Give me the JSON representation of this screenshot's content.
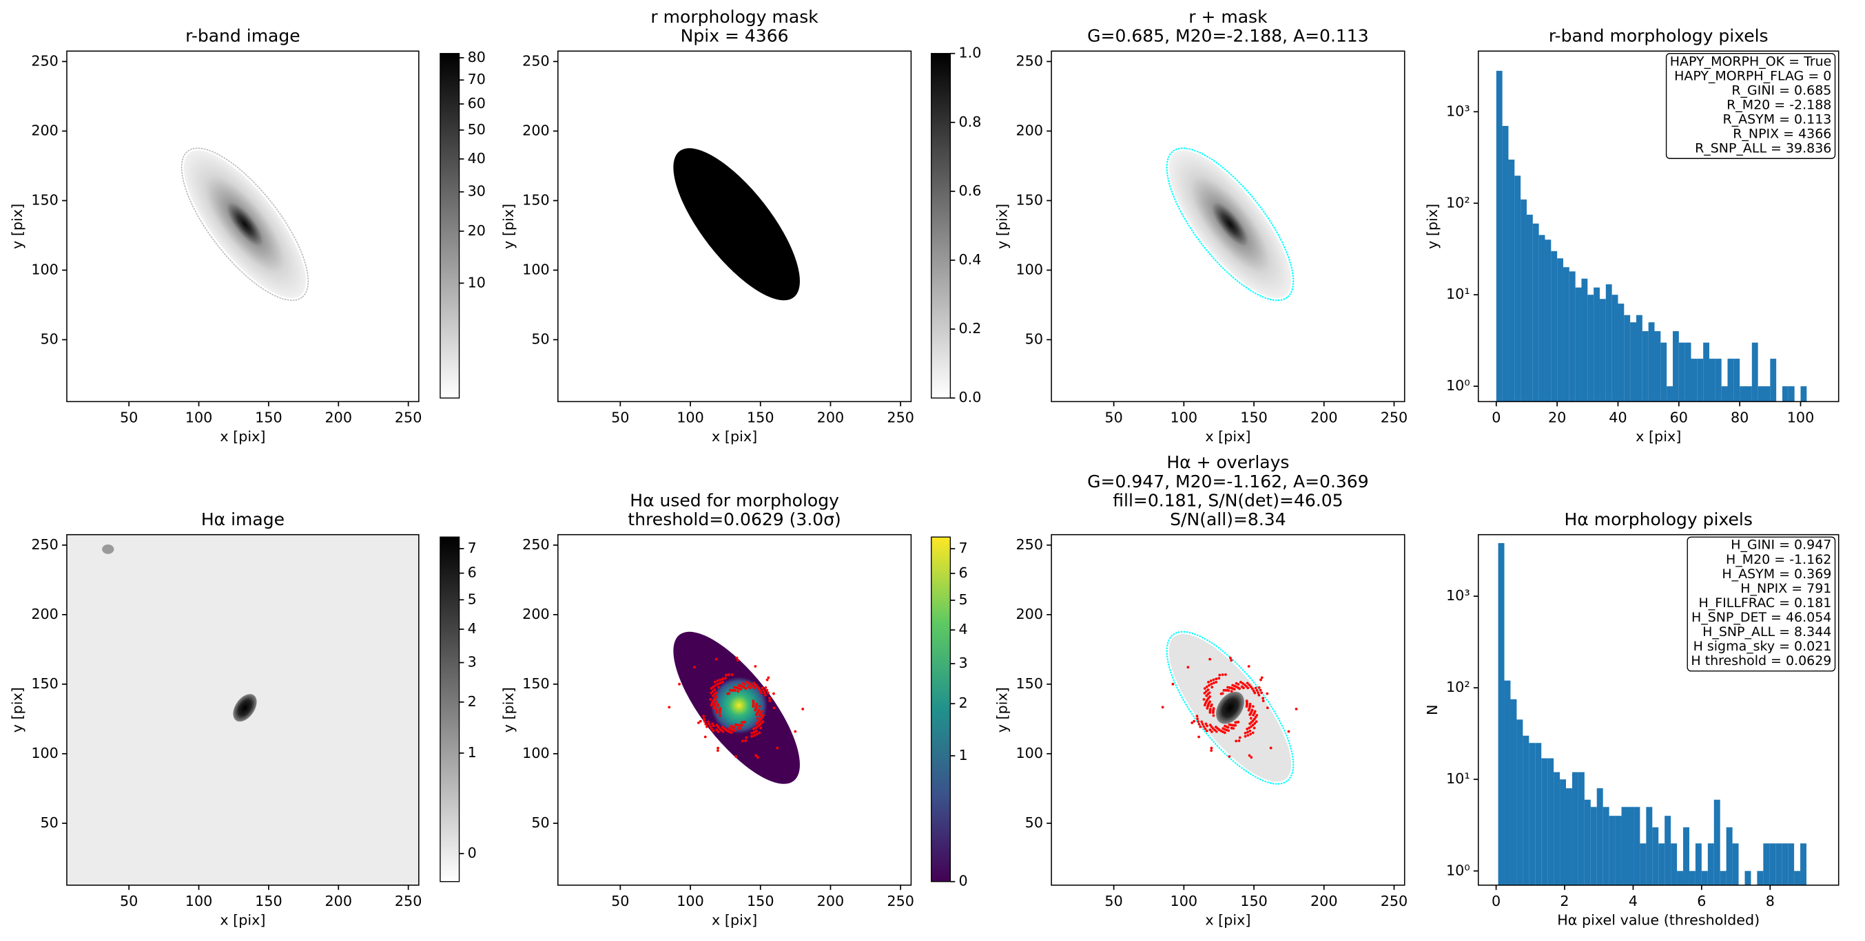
{
  "chart_data": [
    {
      "type": "image",
      "title": [
        "r-band image"
      ],
      "xlabel": "x [pix]",
      "ylabel": "y [pix]",
      "xlim": [
        5.5,
        257.5
      ],
      "ylim": [
        5.5,
        257.5
      ],
      "xticks": [
        50,
        100,
        150,
        200,
        250
      ],
      "yticks": [
        50,
        100,
        150,
        200,
        250
      ],
      "cmap": "gray_r",
      "outline_color": "#bbbbbb",
      "colorbar": {
        "clim": [
          1,
          82
        ],
        "scale": "sqrt",
        "ticks": [
          10,
          20,
          30,
          40,
          50,
          60,
          70,
          80
        ]
      }
    },
    {
      "type": "image",
      "title": [
        "r morphology mask",
        "Npix = 4366"
      ],
      "xlabel": "x [pix]",
      "ylabel": "y [pix]",
      "xlim": [
        5.5,
        257.5
      ],
      "ylim": [
        5.5,
        257.5
      ],
      "xticks": [
        50,
        100,
        150,
        200,
        250
      ],
      "yticks": [
        50,
        100,
        150,
        200,
        250
      ],
      "cmap": "gray_r",
      "colorbar": {
        "clim": [
          0,
          1
        ],
        "scale": "linear",
        "ticks": [
          {
            "value": 0,
            "label": "0.0"
          },
          {
            "value": 0.2,
            "label": "0.2"
          },
          {
            "value": 0.4,
            "label": "0.4"
          },
          {
            "value": 0.6,
            "label": "0.6"
          },
          {
            "value": 0.8,
            "label": "0.8"
          },
          {
            "value": 1,
            "label": "1.0"
          }
        ]
      }
    },
    {
      "type": "image",
      "title": [
        "r + mask",
        "G=0.685, M20=-2.188, A=0.113"
      ],
      "xlabel": "x [pix]",
      "ylabel": "y [pix]",
      "xlim": [
        5.5,
        257.5
      ],
      "ylim": [
        5.5,
        257.5
      ],
      "xticks": [
        50,
        100,
        150,
        200,
        250
      ],
      "yticks": [
        50,
        100,
        150,
        200,
        250
      ],
      "cmap": "gray_r",
      "outline_color": "#00ffff"
    },
    {
      "type": "histogram",
      "title": [
        "r-band morphology pixels"
      ],
      "xlabel": "x [pix]",
      "ylabel": "y [pix]",
      "xlim": [
        -5.9,
        112.5
      ],
      "ylim": [
        0.68,
        4600
      ],
      "log_y": true,
      "color": "#1f77b4",
      "xticks": [
        0,
        20,
        40,
        60,
        80,
        100
      ],
      "yticks": [
        {
          "value": 1,
          "label": "10⁰"
        },
        {
          "value": 10,
          "label": "10¹"
        },
        {
          "value": 100,
          "label": "10²"
        },
        {
          "value": 1000,
          "label": "10³"
        }
      ],
      "bins": [
        0,
        2,
        4,
        6,
        8,
        10,
        12,
        14,
        16,
        18,
        20,
        22,
        24,
        26,
        28,
        30,
        32,
        34,
        36,
        38,
        40,
        42,
        44,
        46,
        48,
        50,
        52,
        54,
        56,
        58,
        60,
        62,
        64,
        66,
        68,
        70,
        72,
        74,
        76,
        78,
        80,
        82,
        84,
        86,
        88,
        90,
        92,
        94,
        96,
        98,
        100,
        102
      ],
      "counts": [
        2800,
        700,
        300,
        200,
        110,
        75,
        60,
        45,
        40,
        30,
        25,
        20,
        18,
        12,
        15,
        10,
        12,
        9,
        13,
        10,
        8,
        6,
        5,
        6,
        4,
        5,
        4,
        3,
        1,
        4,
        3,
        3,
        2,
        2,
        3,
        2,
        2,
        1,
        2,
        2,
        1,
        1,
        3,
        1,
        1,
        2,
        0,
        1,
        1,
        0,
        1
      ],
      "annotations": [
        "HAPY_MORPH_OK = True",
        "HAPY_MORPH_FLAG = 0",
        "R_GINI = 0.685",
        "R_M20 = -2.188",
        "R_ASYM = 0.113",
        "R_NPIX = 4366",
        "R_SNP_ALL = 39.836"
      ]
    },
    {
      "type": "image",
      "title": [
        "Hα image"
      ],
      "xlabel": "x [pix]",
      "ylabel": "y [pix]",
      "xlim": [
        5.5,
        257.5
      ],
      "ylim": [
        5.5,
        257.5
      ],
      "xticks": [
        50,
        100,
        150,
        200,
        250
      ],
      "yticks": [
        50,
        100,
        150,
        200,
        250
      ],
      "cmap": "gray_r",
      "colorbar": {
        "clim": [
          -0.05,
          7.5
        ],
        "scale": "sqrt",
        "ticks": [
          0,
          1,
          2,
          3,
          4,
          5,
          6,
          7
        ]
      }
    },
    {
      "type": "image",
      "title": [
        "Hα used for morphology",
        "threshold=0.0629 (3.0σ)"
      ],
      "xlabel": "x [pix]",
      "ylabel": "y [pix]",
      "xlim": [
        5.5,
        257.5
      ],
      "ylim": [
        5.5,
        257.5
      ],
      "xticks": [
        50,
        100,
        150,
        200,
        250
      ],
      "yticks": [
        50,
        100,
        150,
        200,
        250
      ],
      "cmap": "viridis",
      "points_color": "#ff0000",
      "colorbar": {
        "clim": [
          0,
          7.5
        ],
        "scale": "sqrt",
        "ticks": [
          0,
          1,
          2,
          3,
          4,
          5,
          6,
          7
        ]
      }
    },
    {
      "type": "image",
      "title": [
        "Hα + overlays",
        "G=0.947, M20=-1.162, A=0.369",
        "fill=0.181, S/N(det)=46.05",
        "S/N(all)=8.34"
      ],
      "xlabel": "x [pix]",
      "ylabel": "y [pix]",
      "xlim": [
        5.5,
        257.5
      ],
      "ylim": [
        5.5,
        257.5
      ],
      "xticks": [
        50,
        100,
        150,
        200,
        250
      ],
      "yticks": [
        50,
        100,
        150,
        200,
        250
      ],
      "cmap": "gray_r",
      "outline_color": "#00ffff",
      "points_color": "#ff0000"
    },
    {
      "type": "histogram",
      "title": [
        "Hα morphology pixels"
      ],
      "xlabel": "Hα pixel value (thresholded)",
      "ylabel": "N",
      "xlim": [
        -0.52,
        10.0
      ],
      "ylim": [
        0.7,
        4700
      ],
      "log_y": true,
      "color": "#1f77b4",
      "xticks": [
        0,
        2,
        4,
        6,
        8
      ],
      "yticks": [
        {
          "value": 1,
          "label": "10⁰"
        },
        {
          "value": 10,
          "label": "10¹"
        },
        {
          "value": 100,
          "label": "10²"
        },
        {
          "value": 1000,
          "label": "10³"
        }
      ],
      "bins": [
        0.06,
        0.24,
        0.42,
        0.6,
        0.78,
        0.96,
        1.14,
        1.32,
        1.5,
        1.68,
        1.86,
        2.04,
        2.22,
        2.4,
        2.58,
        2.76,
        2.94,
        3.12,
        3.3,
        3.48,
        3.66,
        3.84,
        4.02,
        4.2,
        4.38,
        4.56,
        4.74,
        4.92,
        5.1,
        5.28,
        5.46,
        5.64,
        5.82,
        6.0,
        6.18,
        6.36,
        6.54,
        6.72,
        6.9,
        7.08,
        7.26,
        7.44,
        7.62,
        7.8,
        7.98,
        8.16,
        8.34,
        8.52,
        8.7,
        8.88,
        9.06
      ],
      "counts": [
        3800,
        120,
        75,
        45,
        30,
        25,
        25,
        17,
        17,
        12,
        10,
        8,
        12,
        12,
        6,
        5,
        8,
        5,
        4,
        4,
        5,
        5,
        5,
        2,
        5,
        3,
        2,
        4,
        2,
        1,
        3,
        1,
        2,
        1,
        2,
        6,
        1,
        3,
        2,
        0,
        1,
        0,
        1,
        2,
        2,
        2,
        2,
        2,
        1,
        2
      ],
      "annotations": [
        "H_GINI = 0.947",
        "H_M20 = -1.162",
        "H_ASYM = 0.369",
        "H_NPIX = 791",
        "H_FILLFRAC = 0.181",
        "H_SNP_DET = 46.054",
        "H_SNP_ALL = 8.344",
        "H sigma_sky = 0.021",
        "H threshold = 0.0629"
      ]
    }
  ]
}
